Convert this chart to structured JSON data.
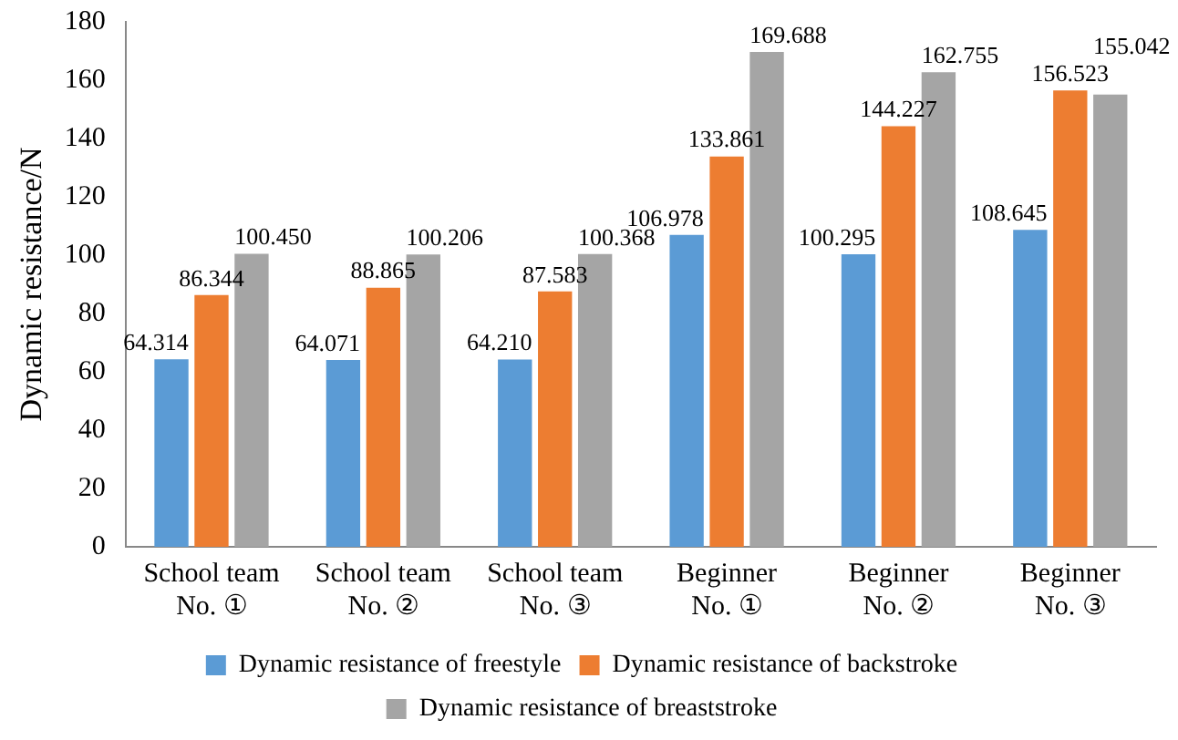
{
  "chart_data": {
    "type": "bar",
    "ylabel": "Dynamic resistance/N",
    "categories": [
      "School team\nNo. ①",
      "School team\nNo. ②",
      "School team\nNo. ③",
      "Beginner\nNo. ①",
      "Beginner\nNo. ②",
      "Beginner\nNo. ③"
    ],
    "series": [
      {
        "name": "Dynamic resistance of freestyle",
        "color": "#5b9bd5",
        "values": [
          64.314,
          64.071,
          64.21,
          106.978,
          100.295,
          108.645
        ],
        "value_labels": [
          "64.314",
          "64.071",
          "64.210",
          "106.978",
          "100.295",
          "108.645"
        ]
      },
      {
        "name": "Dynamic resistance of backstroke",
        "color": "#ed7d31",
        "values": [
          86.344,
          88.865,
          87.583,
          133.861,
          144.227,
          156.523
        ],
        "value_labels": [
          "86.344",
          "88.865",
          "87.583",
          "133.861",
          "144.227",
          "156.523"
        ]
      },
      {
        "name": "Dynamic resistance of breaststroke",
        "color": "#a5a5a5",
        "values": [
          100.45,
          100.206,
          100.368,
          169.688,
          162.755,
          155.042
        ],
        "value_labels": [
          "100.450",
          "100.206",
          "100.368",
          "169.688",
          "162.755",
          "155.042"
        ]
      }
    ],
    "ylim": [
      0,
      180
    ],
    "yticks": [
      0,
      20,
      40,
      60,
      80,
      100,
      120,
      140,
      160,
      180
    ],
    "grid": false,
    "legend": "bottom"
  }
}
